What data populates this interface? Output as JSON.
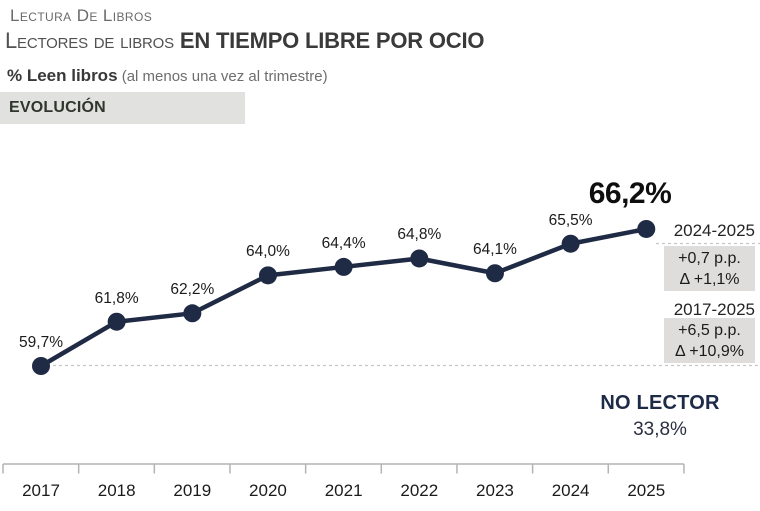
{
  "header": {
    "kicker": "Lectura De Libros",
    "title_regular": "Lectores de libros ",
    "title_bold": "EN TIEMPO LIBRE POR OCIO",
    "subtitle_bold": "% Leen libros",
    "subtitle_note": " (al menos una vez al trimestre)",
    "badge": "EVOLUCIÓN"
  },
  "chart_data": {
    "type": "line",
    "title": "Lectores de libros en tiempo libre por ocio",
    "series_label": "% Leen libros (al menos una vez al trimestre)",
    "x": [
      "2017",
      "2018",
      "2019",
      "2020",
      "2021",
      "2022",
      "2023",
      "2024",
      "2025"
    ],
    "values": [
      59.7,
      61.8,
      62.2,
      64.0,
      64.4,
      64.8,
      64.1,
      65.5,
      66.2
    ],
    "point_labels": [
      "59,7%",
      "61,8%",
      "62,2%",
      "64,0%",
      "64,4%",
      "64,8%",
      "64,1%",
      "65,5%",
      "66,2%"
    ],
    "highlight_index": 8,
    "ylim": [
      58,
      68
    ],
    "grid": "off",
    "line_color": "#1f2a44",
    "axis_color": "#b3b3b3",
    "dash_color": "#c6c6c6",
    "annotations": [
      {
        "label": "2024-2025",
        "lines": [
          "+0,7 p.p.",
          "Δ +1,1%"
        ]
      },
      {
        "label": "2017-2025",
        "lines": [
          "+6,5 p.p.",
          "Δ +10,9%"
        ]
      }
    ],
    "footer_stat": {
      "label": "NO LECTOR",
      "value": "33,8%"
    }
  }
}
